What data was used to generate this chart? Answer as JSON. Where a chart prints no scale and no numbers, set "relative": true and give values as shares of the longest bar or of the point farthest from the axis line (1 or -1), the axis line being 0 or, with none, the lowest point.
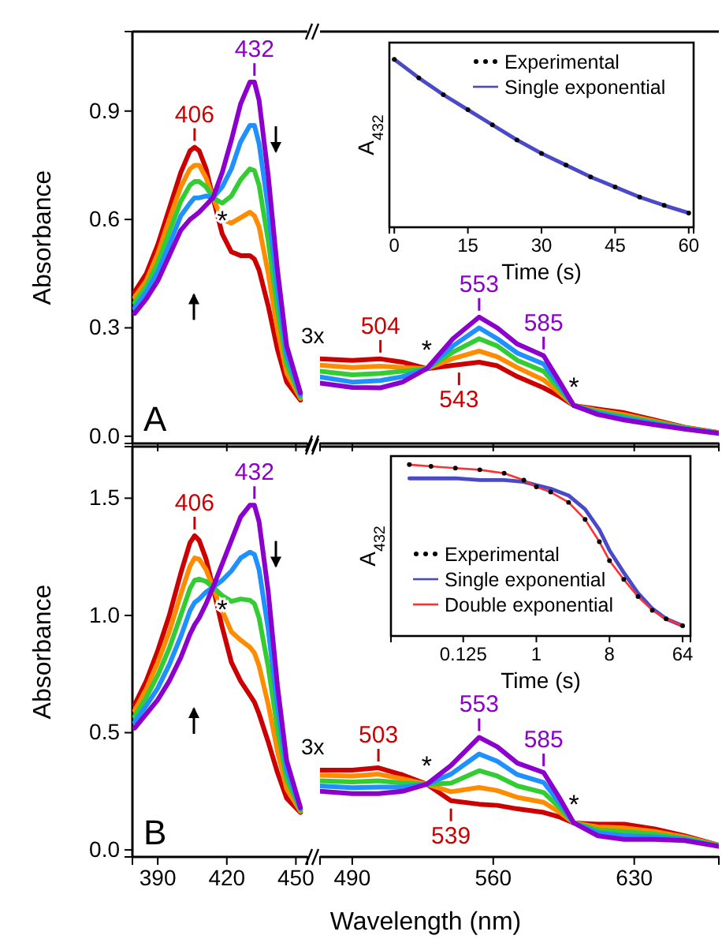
{
  "chart_data": [
    {
      "type": "line",
      "title": "A",
      "ylabel": "Absorbance",
      "x": [
        380,
        385,
        390,
        395,
        400,
        404,
        406,
        408,
        411,
        414,
        418,
        422,
        426,
        430,
        432,
        434,
        438,
        442,
        446,
        452
      ],
      "xlim": [
        379,
        455
      ],
      "xticks": [
        390,
        420,
        450
      ],
      "ylim": [
        -0.02,
        1.12
      ],
      "yticks": [
        {
          "value": 0,
          "label": "0.0"
        },
        {
          "value": 0.3,
          "label": "0.3"
        },
        {
          "value": 0.6,
          "label": "0.6"
        },
        {
          "value": 0.9,
          "label": "0.9"
        }
      ],
      "tick_labels": "y",
      "series": [
        {
          "color": "#cc0000",
          "values": [
            0.4,
            0.45,
            0.53,
            0.63,
            0.73,
            0.79,
            0.8,
            0.79,
            0.74,
            0.66,
            0.56,
            0.51,
            0.5,
            0.5,
            0.49,
            0.46,
            0.36,
            0.24,
            0.15,
            0.1
          ]
        },
        {
          "color": "#ff8c00",
          "values": [
            0.385,
            0.43,
            0.505,
            0.6,
            0.69,
            0.74,
            0.75,
            0.75,
            0.715,
            0.66,
            0.6,
            0.59,
            0.605,
            0.62,
            0.61,
            0.58,
            0.45,
            0.295,
            0.175,
            0.105
          ]
        },
        {
          "color": "#33cc33",
          "values": [
            0.37,
            0.415,
            0.48,
            0.565,
            0.65,
            0.695,
            0.705,
            0.705,
            0.69,
            0.66,
            0.645,
            0.665,
            0.71,
            0.74,
            0.735,
            0.695,
            0.54,
            0.35,
            0.2,
            0.11
          ]
        },
        {
          "color": "#1e90ff",
          "values": [
            0.355,
            0.4,
            0.455,
            0.53,
            0.61,
            0.645,
            0.66,
            0.66,
            0.665,
            0.66,
            0.69,
            0.74,
            0.815,
            0.86,
            0.86,
            0.81,
            0.63,
            0.405,
            0.225,
            0.115
          ]
        },
        {
          "color": "#8b00cc",
          "values": [
            0.34,
            0.38,
            0.43,
            0.5,
            0.57,
            0.6,
            0.61,
            0.62,
            0.64,
            0.66,
            0.73,
            0.82,
            0.92,
            0.98,
            0.98,
            0.93,
            0.72,
            0.46,
            0.25,
            0.12
          ]
        }
      ],
      "annotations": [
        {
          "text": "406",
          "x": 406,
          "y": 0.8
        },
        {
          "text": "432",
          "x": 432,
          "y": 0.98
        },
        {
          "text": "*",
          "x": 414,
          "y": 0.66
        }
      ]
    },
    {
      "type": "line",
      "x": [
        474,
        490,
        504,
        515,
        527,
        540,
        553,
        562,
        572,
        585,
        593,
        600,
        612,
        625,
        640,
        655,
        672
      ],
      "xlim": [
        474,
        672
      ],
      "xticks": [
        490,
        560,
        630
      ],
      "ylim": [
        -0.02,
        1.12
      ],
      "tick_labels": false,
      "series": [
        {
          "color": "#cc0000",
          "values": [
            0.214,
            0.21,
            0.214,
            0.205,
            0.187,
            0.196,
            0.205,
            0.195,
            0.165,
            0.134,
            0.11,
            0.085,
            0.075,
            0.065,
            0.045,
            0.025,
            0.01
          ]
        },
        {
          "color": "#ff8c00",
          "values": [
            0.197,
            0.19,
            0.194,
            0.19,
            0.187,
            0.215,
            0.236,
            0.22,
            0.19,
            0.156,
            0.12,
            0.085,
            0.071,
            0.06,
            0.042,
            0.024,
            0.01
          ]
        },
        {
          "color": "#33cc33",
          "values": [
            0.18,
            0.17,
            0.174,
            0.18,
            0.187,
            0.233,
            0.27,
            0.25,
            0.21,
            0.18,
            0.13,
            0.085,
            0.068,
            0.055,
            0.039,
            0.023,
            0.009
          ]
        },
        {
          "color": "#1e90ff",
          "values": [
            0.164,
            0.15,
            0.154,
            0.165,
            0.187,
            0.25,
            0.3,
            0.27,
            0.23,
            0.2,
            0.14,
            0.085,
            0.064,
            0.05,
            0.035,
            0.021,
            0.009
          ]
        },
        {
          "color": "#8b00cc",
          "values": [
            0.147,
            0.135,
            0.134,
            0.15,
            0.187,
            0.27,
            0.33,
            0.3,
            0.255,
            0.223,
            0.15,
            0.085,
            0.06,
            0.045,
            0.032,
            0.02,
            0.008
          ]
        }
      ],
      "annotations": [
        "3x",
        {
          "text": "504",
          "x": 504,
          "y": 0.214
        },
        {
          "text": "553",
          "x": 553,
          "y": 0.33
        },
        {
          "text": "585",
          "x": 585,
          "y": 0.223
        },
        {
          "text": "543",
          "x": 543,
          "y": 0.198
        },
        {
          "text": "*",
          "x": 527,
          "y": 0.187
        },
        {
          "text": "*",
          "x": 600,
          "y": 0.085
        }
      ]
    },
    {
      "type": "line",
      "xlabel": "Time (s)",
      "ylabel": "A$_{432}$",
      "relative": true,
      "xlim": [
        -1,
        61
      ],
      "xticks": [
        0,
        15,
        30,
        45,
        60
      ],
      "tick_labels": "x",
      "legend": "top right",
      "x": [
        0,
        5,
        10,
        15,
        20,
        25,
        30,
        35,
        40,
        45,
        50,
        55,
        60
      ],
      "series": [
        {
          "name": "Experimental",
          "type": "scatter",
          "marker": "circle",
          "color": "#000000",
          "values": [
            1.0,
            0.89,
            0.79,
            0.7,
            0.61,
            0.52,
            0.44,
            0.37,
            0.3,
            0.24,
            0.18,
            0.13,
            0.085
          ]
        },
        {
          "name": "Single exponential",
          "color": "#4a4ac8",
          "values": [
            1.0,
            0.89,
            0.79,
            0.7,
            0.61,
            0.52,
            0.44,
            0.37,
            0.3,
            0.24,
            0.18,
            0.13,
            0.085
          ]
        }
      ]
    },
    {
      "type": "line",
      "title": "B",
      "ylabel": "Absorbance",
      "x": [
        380,
        385,
        390,
        395,
        400,
        404,
        406,
        408,
        411,
        414,
        418,
        422,
        426,
        430,
        432,
        434,
        438,
        442,
        446,
        452
      ],
      "xlim": [
        379,
        455
      ],
      "xticks": [
        390,
        420,
        450
      ],
      "ylim": [
        -0.03,
        1.72
      ],
      "yticks": [
        {
          "value": 0,
          "label": "0.0"
        },
        {
          "value": 0.5,
          "label": "0.5"
        },
        {
          "value": 1,
          "label": "1.0"
        },
        {
          "value": 1.5,
          "label": "1.5"
        }
      ],
      "series": [
        {
          "color": "#cc0000",
          "values": [
            0.62,
            0.72,
            0.85,
            1.0,
            1.18,
            1.31,
            1.34,
            1.32,
            1.24,
            1.12,
            0.95,
            0.8,
            0.72,
            0.66,
            0.63,
            0.58,
            0.46,
            0.33,
            0.22,
            0.16
          ]
        },
        {
          "color": "#ff8c00",
          "values": [
            0.595,
            0.685,
            0.8,
            0.93,
            1.09,
            1.21,
            1.245,
            1.24,
            1.195,
            1.12,
            1.02,
            0.93,
            0.895,
            0.865,
            0.84,
            0.785,
            0.62,
            0.42,
            0.26,
            0.165
          ]
        },
        {
          "color": "#33cc33",
          "values": [
            0.57,
            0.65,
            0.745,
            0.86,
            1.0,
            1.115,
            1.15,
            1.155,
            1.145,
            1.12,
            1.085,
            1.06,
            1.07,
            1.065,
            1.05,
            0.99,
            0.78,
            0.515,
            0.3,
            0.17
          ]
        },
        {
          "color": "#1e90ff",
          "values": [
            0.545,
            0.615,
            0.69,
            0.79,
            0.91,
            1.02,
            1.055,
            1.07,
            1.1,
            1.12,
            1.15,
            1.19,
            1.245,
            1.27,
            1.26,
            1.195,
            0.94,
            0.61,
            0.34,
            0.175
          ]
        },
        {
          "color": "#8b00cc",
          "values": [
            0.52,
            0.58,
            0.64,
            0.72,
            0.82,
            0.92,
            0.96,
            0.99,
            1.05,
            1.12,
            1.22,
            1.32,
            1.42,
            1.47,
            1.47,
            1.4,
            1.1,
            0.7,
            0.38,
            0.18
          ]
        }
      ],
      "annotations": [
        {
          "text": "406",
          "x": 406,
          "y": 1.34
        },
        {
          "text": "432",
          "x": 432,
          "y": 1.47
        },
        {
          "text": "*",
          "x": 414,
          "y": 1.12
        }
      ]
    },
    {
      "type": "line",
      "xlabel": "Wavelength (nm)",
      "x": [
        474,
        490,
        503,
        515,
        527,
        539,
        553,
        562,
        572,
        585,
        593,
        600,
        612,
        625,
        640,
        655,
        672
      ],
      "xlim": [
        474,
        672
      ],
      "xticks": [
        490,
        560,
        630
      ],
      "ylim": [
        -0.03,
        1.72
      ],
      "tick_labels": "x",
      "series": [
        {
          "color": "#cc0000",
          "values": [
            0.34,
            0.34,
            0.35,
            0.32,
            0.28,
            0.21,
            0.195,
            0.19,
            0.175,
            0.16,
            0.14,
            0.115,
            0.11,
            0.11,
            0.09,
            0.06,
            0.02
          ]
        },
        {
          "color": "#ff8c00",
          "values": [
            0.318,
            0.315,
            0.323,
            0.303,
            0.28,
            0.248,
            0.266,
            0.253,
            0.224,
            0.203,
            0.16,
            0.115,
            0.098,
            0.094,
            0.079,
            0.055,
            0.019
          ]
        },
        {
          "color": "#33cc33",
          "values": [
            0.295,
            0.29,
            0.295,
            0.285,
            0.28,
            0.285,
            0.338,
            0.315,
            0.273,
            0.245,
            0.18,
            0.115,
            0.085,
            0.078,
            0.068,
            0.05,
            0.018
          ]
        },
        {
          "color": "#1e90ff",
          "values": [
            0.273,
            0.265,
            0.268,
            0.268,
            0.28,
            0.323,
            0.409,
            0.378,
            0.321,
            0.288,
            0.2,
            0.115,
            0.073,
            0.061,
            0.056,
            0.045,
            0.016
          ]
        },
        {
          "color": "#8b00cc",
          "values": [
            0.25,
            0.24,
            0.24,
            0.25,
            0.28,
            0.36,
            0.48,
            0.44,
            0.37,
            0.33,
            0.22,
            0.115,
            0.06,
            0.045,
            0.045,
            0.04,
            0.015
          ]
        }
      ],
      "annotations": [
        "3x",
        {
          "text": "503",
          "x": 503,
          "y": 0.35
        },
        {
          "text": "553",
          "x": 553,
          "y": 0.48
        },
        {
          "text": "585",
          "x": 585,
          "y": 0.33
        },
        {
          "text": "539",
          "x": 539,
          "y": 0.21
        },
        {
          "text": "*",
          "x": 527,
          "y": 0.28
        },
        {
          "text": "*",
          "x": 600,
          "y": 0.115
        }
      ]
    },
    {
      "type": "line",
      "xlabel": "Time (s)",
      "ylabel": "A$_{432}$",
      "relative": true,
      "log": "x",
      "xlim": [
        0.016,
        80
      ],
      "xticks": [
        0.125,
        1,
        8,
        64
      ],
      "tick_labels": "x",
      "legend": "bottom left",
      "x": [
        0.027,
        0.05,
        0.1,
        0.2,
        0.4,
        0.7,
        1,
        1.5,
        2.5,
        4,
        6,
        8,
        12,
        18,
        27,
        40,
        64
      ],
      "series": [
        {
          "name": "Experimental",
          "type": "scatter",
          "marker": "circle",
          "color": "#000000",
          "values": [
            1.0,
            0.99,
            0.98,
            0.97,
            0.95,
            0.91,
            0.87,
            0.84,
            0.78,
            0.68,
            0.55,
            0.44,
            0.33,
            0.23,
            0.15,
            0.1,
            0.06
          ]
        },
        {
          "name": "Single exponential",
          "color": "#4a4ac8",
          "values": [
            0.92,
            0.92,
            0.92,
            0.91,
            0.91,
            0.9,
            0.88,
            0.86,
            0.82,
            0.74,
            0.62,
            0.5,
            0.37,
            0.25,
            0.16,
            0.1,
            0.06
          ]
        },
        {
          "name": "Double exponential",
          "color": "#ff3030",
          "values": [
            1.0,
            0.99,
            0.98,
            0.97,
            0.95,
            0.91,
            0.87,
            0.84,
            0.78,
            0.68,
            0.55,
            0.44,
            0.33,
            0.23,
            0.15,
            0.1,
            0.06
          ]
        }
      ]
    }
  ]
}
